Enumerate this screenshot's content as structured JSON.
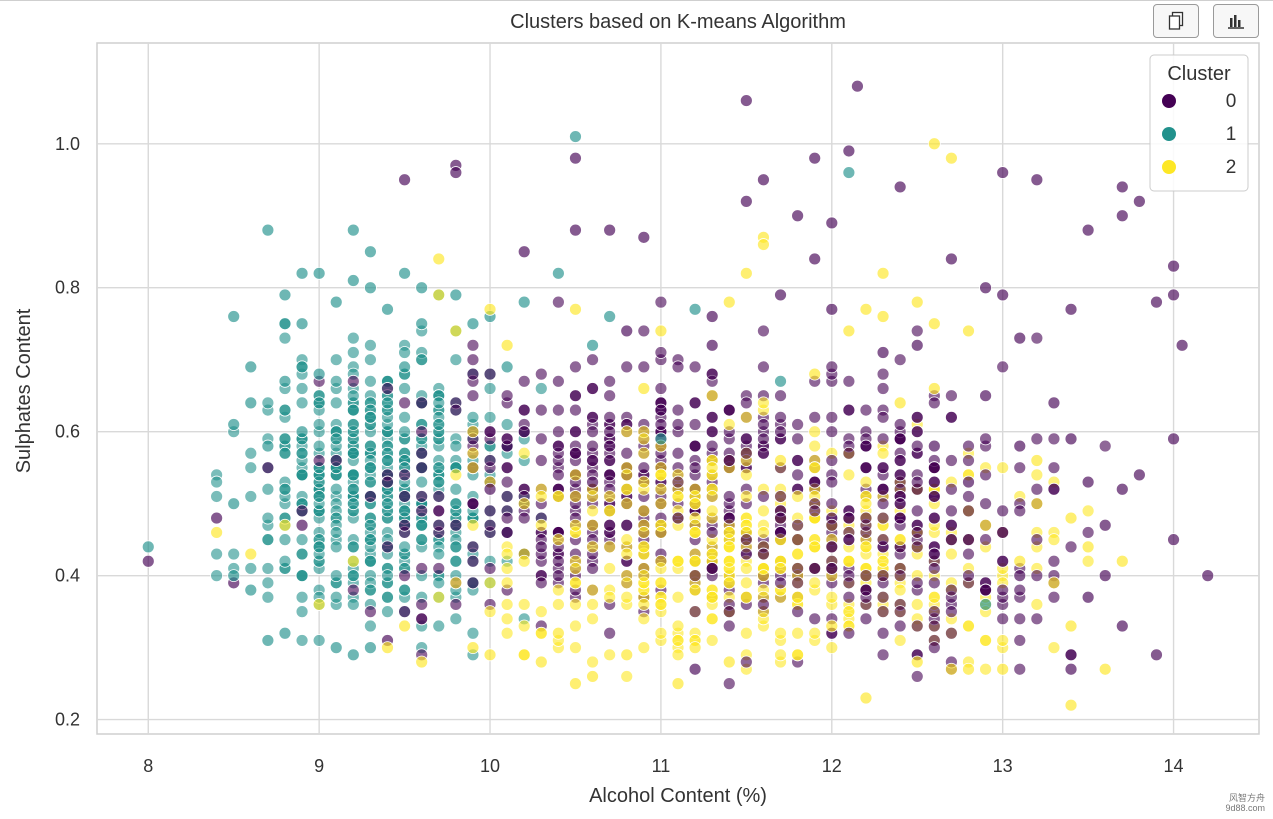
{
  "toolbar": {
    "copy_icon": "copy-icon",
    "chart_icon": "bar-chart-icon"
  },
  "watermark": {
    "line1": "风智方舟",
    "line2": "9d88.com"
  },
  "chart_data": {
    "type": "scatter",
    "title": "Clusters based on K-means Algorithm",
    "xlabel": "Alcohol Content (%)",
    "ylabel": "Sulphates Content",
    "xlim": [
      7.7,
      14.5
    ],
    "ylim": [
      0.18,
      1.14
    ],
    "xticks": [
      8,
      9,
      10,
      11,
      12,
      13,
      14
    ],
    "yticks": [
      0.2,
      0.4,
      0.6,
      0.8,
      1.0
    ],
    "xtick_labels": [
      "8",
      "9",
      "10",
      "11",
      "12",
      "13",
      "14"
    ],
    "ytick_labels": [
      "0.2",
      "0.4",
      "0.6",
      "0.8",
      "1.0"
    ],
    "grid": true,
    "legend": {
      "title": "Cluster",
      "placement": "top-right",
      "entries": [
        "0",
        "1",
        "2"
      ]
    },
    "series": [
      {
        "name": "0",
        "color": "#440154",
        "points": [
          [
            8.0,
            0.42
          ],
          [
            8.4,
            0.48
          ],
          [
            8.5,
            0.39
          ],
          [
            8.7,
            0.55
          ],
          [
            8.9,
            0.47
          ],
          [
            9.4,
            0.31
          ],
          [
            9.5,
            0.95
          ],
          [
            9.5,
            0.35
          ],
          [
            9.8,
            0.97
          ],
          [
            9.8,
            0.96
          ],
          [
            9.9,
            0.68
          ],
          [
            10.0,
            0.52
          ],
          [
            10.2,
            0.85
          ],
          [
            10.3,
            0.44
          ],
          [
            10.4,
            0.58
          ],
          [
            10.5,
            0.98
          ],
          [
            10.5,
            0.88
          ],
          [
            10.6,
            0.53
          ],
          [
            10.7,
            0.88
          ],
          [
            10.8,
            0.74
          ],
          [
            10.9,
            0.87
          ],
          [
            11.0,
            0.63
          ],
          [
            11.1,
            0.48
          ],
          [
            11.2,
            0.27
          ],
          [
            11.3,
            0.76
          ],
          [
            11.3,
            0.72
          ],
          [
            11.4,
            0.35
          ],
          [
            11.5,
            1.06
          ],
          [
            11.5,
            0.92
          ],
          [
            11.6,
            0.95
          ],
          [
            11.7,
            0.79
          ],
          [
            11.7,
            0.46
          ],
          [
            11.8,
            0.9
          ],
          [
            11.9,
            0.98
          ],
          [
            11.9,
            0.84
          ],
          [
            12.0,
            0.89
          ],
          [
            12.0,
            0.77
          ],
          [
            12.1,
            0.99
          ],
          [
            12.1,
            0.48
          ],
          [
            12.15,
            1.08
          ],
          [
            12.2,
            0.58
          ],
          [
            12.3,
            0.71
          ],
          [
            12.4,
            0.94
          ],
          [
            12.5,
            0.72
          ],
          [
            12.6,
            0.58
          ],
          [
            12.7,
            0.84
          ],
          [
            12.8,
            0.53
          ],
          [
            12.9,
            0.8
          ],
          [
            12.9,
            0.65
          ],
          [
            13.0,
            0.96
          ],
          [
            13.0,
            0.79
          ],
          [
            13.1,
            0.73
          ],
          [
            13.1,
            0.58
          ],
          [
            13.1,
            0.4
          ],
          [
            13.2,
            0.95
          ],
          [
            13.3,
            0.64
          ],
          [
            13.4,
            0.77
          ],
          [
            13.4,
            0.59
          ],
          [
            13.4,
            0.29
          ],
          [
            13.4,
            0.27
          ],
          [
            13.5,
            0.88
          ],
          [
            13.5,
            0.53
          ],
          [
            13.5,
            0.37
          ],
          [
            13.6,
            0.47
          ],
          [
            13.6,
            0.4
          ],
          [
            13.7,
            0.94
          ],
          [
            13.7,
            0.9
          ],
          [
            13.7,
            0.52
          ],
          [
            13.7,
            0.33
          ],
          [
            13.8,
            0.92
          ],
          [
            13.8,
            0.54
          ],
          [
            13.9,
            0.78
          ],
          [
            13.9,
            0.29
          ],
          [
            14.0,
            0.83
          ],
          [
            14.0,
            0.79
          ],
          [
            14.0,
            0.59
          ],
          [
            14.0,
            0.45
          ],
          [
            14.05,
            0.72
          ],
          [
            14.2,
            0.4
          ]
        ]
      },
      {
        "name": "1",
        "color": "#21918c",
        "points": [
          [
            8.0,
            0.44
          ],
          [
            8.5,
            0.76
          ],
          [
            8.5,
            0.61
          ],
          [
            8.5,
            0.5
          ],
          [
            8.5,
            0.4
          ],
          [
            8.6,
            0.69
          ],
          [
            8.6,
            0.64
          ],
          [
            8.6,
            0.38
          ],
          [
            8.7,
            0.88
          ],
          [
            8.7,
            0.58
          ],
          [
            8.7,
            0.31
          ],
          [
            8.8,
            0.79
          ],
          [
            8.8,
            0.75
          ],
          [
            8.8,
            0.67
          ],
          [
            8.8,
            0.32
          ],
          [
            8.9,
            0.82
          ],
          [
            8.9,
            0.75
          ],
          [
            8.9,
            0.69
          ],
          [
            8.9,
            0.6
          ],
          [
            9.0,
            0.82
          ],
          [
            9.0,
            0.68
          ],
          [
            9.1,
            0.78
          ],
          [
            9.1,
            0.3
          ],
          [
            9.2,
            0.88
          ],
          [
            9.2,
            0.81
          ],
          [
            9.2,
            0.29
          ],
          [
            9.3,
            0.85
          ],
          [
            9.3,
            0.8
          ],
          [
            9.3,
            0.3
          ],
          [
            9.4,
            0.77
          ],
          [
            9.5,
            0.82
          ],
          [
            9.5,
            0.69
          ],
          [
            9.6,
            0.8
          ],
          [
            9.6,
            0.75
          ],
          [
            9.7,
            0.79
          ],
          [
            9.8,
            0.79
          ],
          [
            9.9,
            0.75
          ],
          [
            10.0,
            0.76
          ],
          [
            10.1,
            0.69
          ],
          [
            10.2,
            0.78
          ],
          [
            10.4,
            0.82
          ],
          [
            10.5,
            1.01
          ],
          [
            10.6,
            0.72
          ],
          [
            10.7,
            0.76
          ],
          [
            11.0,
            0.59
          ],
          [
            11.2,
            0.77
          ],
          [
            11.7,
            0.67
          ],
          [
            12.1,
            0.96
          ],
          [
            12.9,
            0.36
          ]
        ]
      },
      {
        "name": "2",
        "color": "#fde725",
        "points": [
          [
            8.4,
            0.46
          ],
          [
            8.6,
            0.43
          ],
          [
            8.8,
            0.47
          ],
          [
            9.0,
            0.36
          ],
          [
            9.2,
            0.42
          ],
          [
            9.4,
            0.3
          ],
          [
            9.5,
            0.33
          ],
          [
            9.6,
            0.28
          ],
          [
            9.7,
            0.84
          ],
          [
            9.7,
            0.79
          ],
          [
            9.8,
            0.74
          ],
          [
            9.9,
            0.3
          ],
          [
            10.0,
            0.77
          ],
          [
            10.0,
            0.29
          ],
          [
            10.1,
            0.72
          ],
          [
            10.2,
            0.29
          ],
          [
            10.3,
            0.28
          ],
          [
            10.4,
            0.32
          ],
          [
            10.5,
            0.77
          ],
          [
            10.5,
            0.25
          ],
          [
            10.6,
            0.26
          ],
          [
            10.8,
            0.29
          ],
          [
            10.9,
            0.66
          ],
          [
            11.0,
            0.74
          ],
          [
            11.1,
            0.25
          ],
          [
            11.2,
            0.3
          ],
          [
            11.3,
            0.65
          ],
          [
            11.4,
            0.78
          ],
          [
            11.4,
            0.28
          ],
          [
            11.5,
            0.82
          ],
          [
            11.6,
            0.87
          ],
          [
            11.6,
            0.86
          ],
          [
            11.7,
            0.56
          ],
          [
            11.8,
            0.29
          ],
          [
            11.9,
            0.68
          ],
          [
            12.0,
            0.33
          ],
          [
            12.1,
            0.74
          ],
          [
            12.2,
            0.77
          ],
          [
            12.2,
            0.23
          ],
          [
            12.3,
            0.82
          ],
          [
            12.3,
            0.76
          ],
          [
            12.4,
            0.64
          ],
          [
            12.4,
            0.45
          ],
          [
            12.5,
            0.78
          ],
          [
            12.5,
            0.28
          ],
          [
            12.6,
            1.0
          ],
          [
            12.6,
            0.75
          ],
          [
            12.6,
            0.66
          ],
          [
            12.7,
            0.98
          ],
          [
            12.7,
            0.27
          ],
          [
            12.8,
            0.74
          ],
          [
            12.8,
            0.27
          ],
          [
            12.9,
            0.47
          ],
          [
            13.0,
            0.27
          ],
          [
            13.1,
            0.42
          ],
          [
            13.2,
            0.56
          ],
          [
            13.2,
            0.5
          ],
          [
            13.3,
            0.39
          ],
          [
            13.4,
            0.48
          ],
          [
            13.4,
            0.33
          ],
          [
            13.4,
            0.22
          ],
          [
            13.5,
            0.44
          ],
          [
            13.6,
            0.27
          ],
          [
            13.7,
            0.42
          ]
        ]
      }
    ]
  }
}
